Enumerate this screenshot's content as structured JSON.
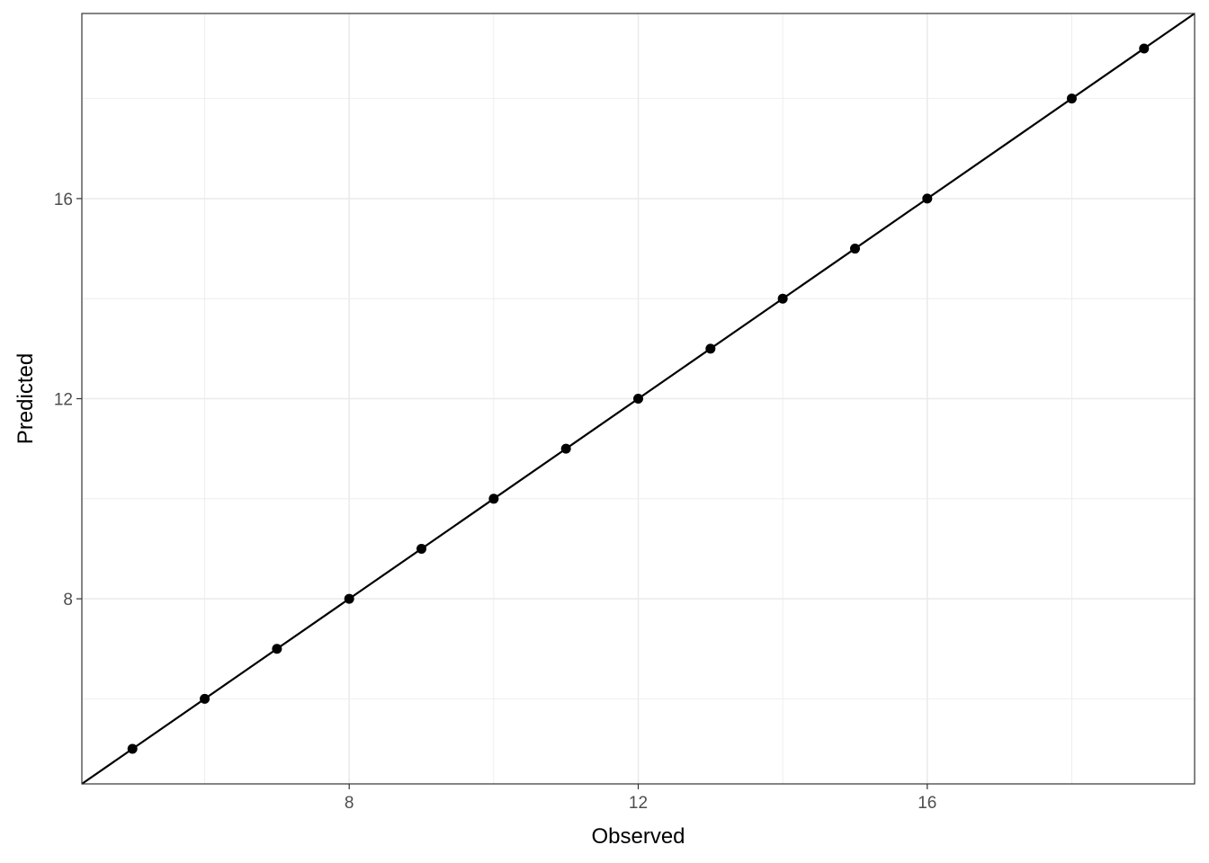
{
  "chart_data": {
    "type": "scatter",
    "title": "",
    "xlabel": "Observed",
    "ylabel": "Predicted",
    "xlim": [
      4.3,
      19.7
    ],
    "ylim": [
      4.3,
      19.7
    ],
    "x_ticks": [
      8,
      12,
      16
    ],
    "y_ticks": [
      8,
      12,
      16
    ],
    "x_minor": [
      6,
      10,
      14,
      18
    ],
    "y_minor": [
      6,
      10,
      14,
      18
    ],
    "grid": true,
    "reference_line": {
      "slope": 1,
      "intercept": 0
    },
    "points": [
      {
        "x": 5,
        "y": 5
      },
      {
        "x": 6,
        "y": 6
      },
      {
        "x": 7,
        "y": 7
      },
      {
        "x": 8,
        "y": 8
      },
      {
        "x": 9,
        "y": 9
      },
      {
        "x": 10,
        "y": 10
      },
      {
        "x": 11,
        "y": 11
      },
      {
        "x": 12,
        "y": 12
      },
      {
        "x": 13,
        "y": 13
      },
      {
        "x": 14,
        "y": 14
      },
      {
        "x": 15,
        "y": 15
      },
      {
        "x": 16,
        "y": 16
      },
      {
        "x": 18,
        "y": 18
      },
      {
        "x": 19,
        "y": 19
      }
    ],
    "colors": {
      "points": "#000000",
      "line": "#000000",
      "grid": "#ebebeb",
      "tick_text": "#4d4d4d"
    }
  }
}
